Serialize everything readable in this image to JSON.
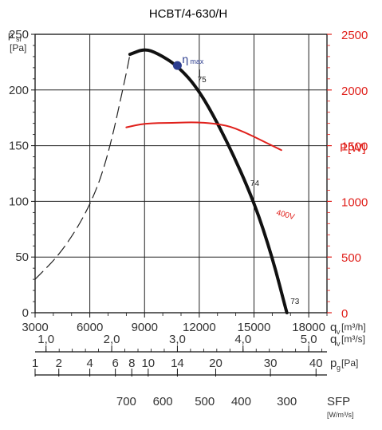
{
  "chart_data": {
    "type": "line",
    "title": "HCBT/4-630/H",
    "left_axis": {
      "label_main": "p",
      "label_sub": "sf",
      "unit": "[Pa]",
      "ticks": [
        0,
        50,
        100,
        150,
        200,
        250
      ],
      "ylim": [
        0,
        250
      ]
    },
    "right_axis": {
      "label": "P[W]",
      "color": "#e0201b",
      "ticks": [
        0,
        500,
        1000,
        1500,
        2000,
        2500
      ],
      "ylim": [
        0,
        2500
      ]
    },
    "x_axis": {
      "label": "q",
      "label_sub": "v",
      "unit": "[m³/h]",
      "ticks": [
        3000,
        6000,
        9000,
        12000,
        15000,
        18000
      ],
      "tick_labels": [
        "3000",
        "6000",
        "9000",
        "12000",
        "15000",
        "18000"
      ],
      "xlim": [
        3000,
        19000
      ],
      "grid": true
    },
    "secondary_scales": [
      {
        "name": "flow_m3s",
        "label": "q",
        "label_sub": "v",
        "unit": "[m³/s]",
        "ticks": [
          1.0,
          2.0,
          3.0,
          4.0,
          5.0
        ],
        "tick_labels": [
          "1,0",
          "2,0",
          "3,0",
          "4,0",
          "5,0"
        ]
      },
      {
        "name": "dynamic_pressure",
        "label": "p",
        "label_sub": "g",
        "unit": "[Pa]",
        "ticks": [
          1,
          2,
          4,
          6,
          8,
          10,
          14,
          20,
          30,
          40
        ],
        "labeled": [
          "1",
          "2",
          "4",
          "6",
          "8",
          "10",
          "14",
          "20",
          "30",
          "40"
        ]
      },
      {
        "name": "SFP",
        "label": "SFP",
        "unit": "[W/m³/s]",
        "ticks": [
          700,
          600,
          500,
          400,
          300
        ],
        "tick_labels": [
          "700",
          "600",
          "500",
          "400",
          "300"
        ]
      }
    ],
    "series": [
      {
        "kind": "pressure-dashed",
        "color": "#222222",
        "points": [
          [
            3000,
            30
          ],
          [
            4500,
            55
          ],
          [
            6000,
            95
          ],
          [
            7000,
            140
          ],
          [
            8000,
            215
          ],
          [
            8200,
            232
          ]
        ]
      },
      {
        "kind": "pressure",
        "color": "#111111",
        "points": [
          [
            8200,
            232
          ],
          [
            9000,
            237
          ],
          [
            9700,
            233
          ],
          [
            10800,
            222
          ],
          [
            12000,
            200
          ],
          [
            13500,
            155
          ],
          [
            15000,
            100
          ],
          [
            16000,
            50
          ],
          [
            16800,
            0
          ]
        ]
      },
      {
        "kind": "power",
        "name": "400V",
        "color": "#e0201b",
        "points": [
          [
            8000,
            1665
          ],
          [
            9000,
            1700
          ],
          [
            10500,
            1705
          ],
          [
            12000,
            1712
          ],
          [
            13500,
            1685
          ],
          [
            14500,
            1620
          ],
          [
            15500,
            1540
          ],
          [
            16500,
            1460
          ]
        ]
      }
    ],
    "annotations": [
      {
        "text": "η",
        "sub": "max",
        "x": 10800,
        "y": 222,
        "marker": true,
        "color": "#2c3d8f"
      },
      {
        "text": "75",
        "x": 11900,
        "y": 207
      },
      {
        "text": "74",
        "x": 14800,
        "y": 114
      },
      {
        "text": "73",
        "x": 17000,
        "y": 8
      },
      {
        "text": "400V",
        "x": 16200,
        "y": 88,
        "color": "#e0201b"
      }
    ]
  }
}
